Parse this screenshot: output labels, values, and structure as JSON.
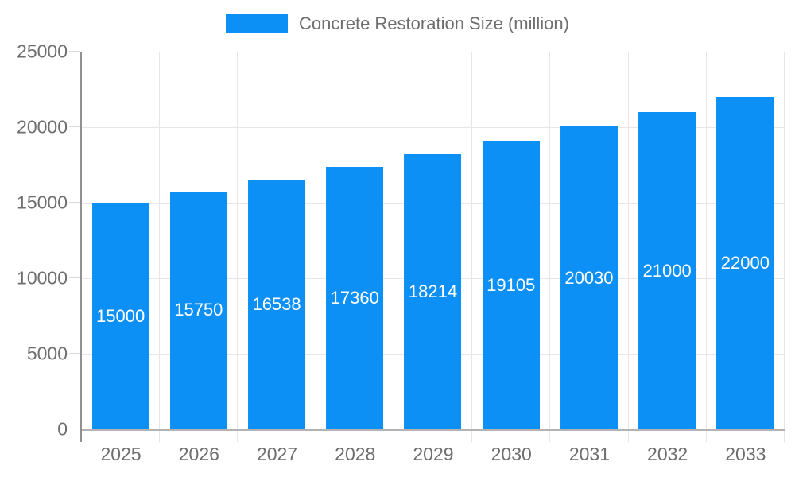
{
  "chart_data": {
    "type": "bar",
    "title": "",
    "legend": "Concrete Restoration Size (million)",
    "legend_position": "top",
    "categories": [
      "2025",
      "2026",
      "2027",
      "2028",
      "2029",
      "2030",
      "2031",
      "2032",
      "2033"
    ],
    "values": [
      15000,
      15750,
      16538,
      17360,
      18214,
      19105,
      20030,
      21000,
      22000
    ],
    "xlabel": "",
    "ylabel": "",
    "ylim": [
      0,
      25000
    ],
    "yticks": [
      0,
      5000,
      10000,
      15000,
      20000,
      25000
    ],
    "grid": true,
    "bar_color": "#0d90f5",
    "bar_label_color": "#ffffff",
    "axis_text_color": "#6e6e6e",
    "gridline_color": "#e6e6e6"
  }
}
